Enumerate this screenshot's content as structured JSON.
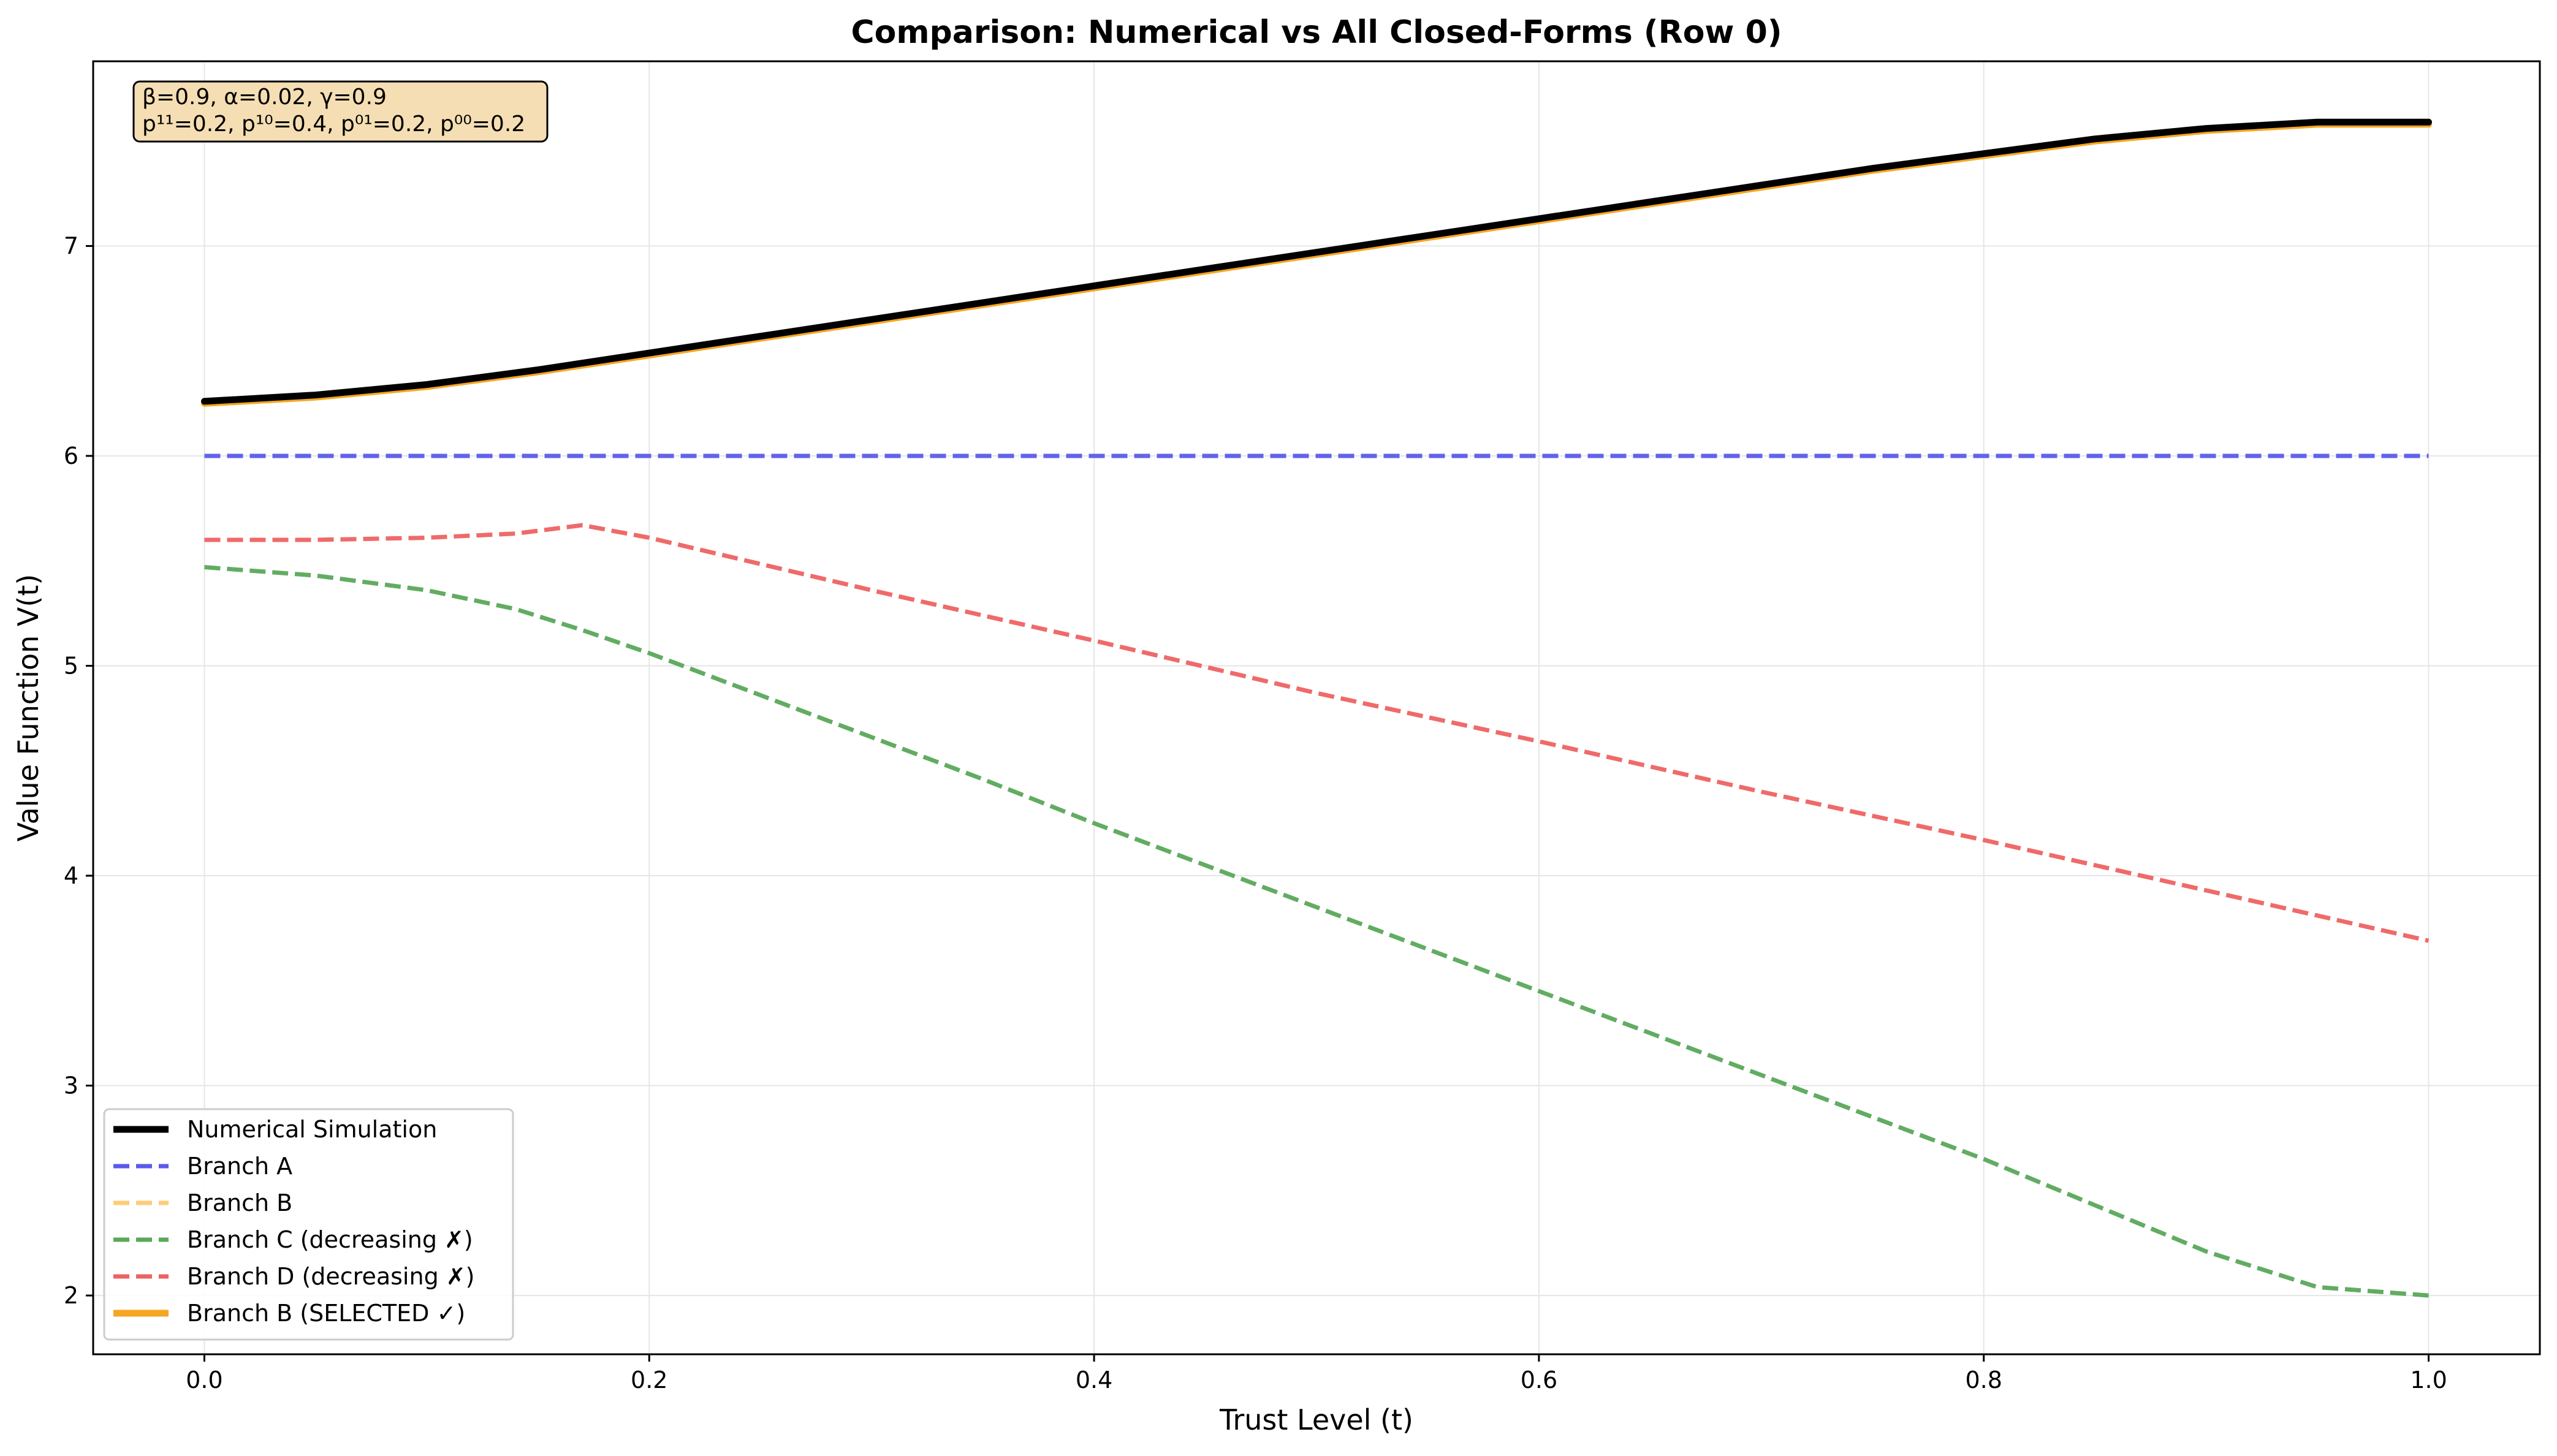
{
  "chart_data": {
    "type": "line",
    "title": "Comparison: Numerical vs All Closed-Forms (Row 0)",
    "xlabel": "Trust Level (t)",
    "ylabel": "Value Function V(t)",
    "xlim": [
      -0.05,
      1.05
    ],
    "ylim": [
      1.72,
      7.88
    ],
    "xticks": [
      0.0,
      0.2,
      0.4,
      0.6,
      0.8,
      1.0
    ],
    "xtick_labels": [
      "0.0",
      "0.2",
      "0.4",
      "0.6",
      "0.8",
      "1.0"
    ],
    "yticks": [
      2,
      3,
      4,
      5,
      6,
      7
    ],
    "ytick_labels": [
      "2",
      "3",
      "4",
      "5",
      "6",
      "7"
    ],
    "grid": true,
    "legend_position": "lower-left",
    "annotation_lines": [
      "β=0.9, α=0.02, γ=0.9",
      "p¹¹=0.2, p¹⁰=0.4, p⁰¹=0.2, p⁰⁰=0.2"
    ],
    "x": [
      0.0,
      0.05,
      0.1,
      0.15,
      0.2,
      0.25,
      0.3,
      0.35,
      0.4,
      0.45,
      0.5,
      0.55,
      0.6,
      0.65,
      0.7,
      0.75,
      0.8,
      0.85,
      0.9,
      0.95,
      1.0
    ],
    "series": [
      {
        "name": "Numerical Simulation",
        "color": "#000000",
        "style": "solid",
        "width": 11,
        "values": [
          6.26,
          6.29,
          6.34,
          6.41,
          6.49,
          6.57,
          6.65,
          6.73,
          6.81,
          6.89,
          6.97,
          7.05,
          7.13,
          7.21,
          7.29,
          7.37,
          7.44,
          7.51,
          7.56,
          7.59,
          7.59
        ]
      },
      {
        "name": "Branch A",
        "color": "#5b5bea",
        "style": "dashed",
        "width": 7,
        "values": [
          6.0,
          6.0,
          6.0,
          6.0,
          6.0,
          6.0,
          6.0,
          6.0,
          6.0,
          6.0,
          6.0,
          6.0,
          6.0,
          6.0,
          6.0,
          6.0,
          6.0,
          6.0,
          6.0,
          6.0,
          6.0
        ]
      },
      {
        "name": "Branch B",
        "color": "#ffcc77",
        "style": "dashed",
        "width": 7,
        "values": [
          6.25,
          6.28,
          6.33,
          6.4,
          6.48,
          6.56,
          6.64,
          6.72,
          6.8,
          6.88,
          6.96,
          7.04,
          7.12,
          7.2,
          7.28,
          7.36,
          7.43,
          7.5,
          7.55,
          7.58,
          7.58
        ]
      },
      {
        "name": "Branch C (decreasing ✗)",
        "color": "#5aa85a",
        "style": "dashed",
        "width": 7,
        "x": [
          0.0,
          0.05,
          0.1,
          0.14,
          0.17,
          0.2,
          0.25,
          0.3,
          0.35,
          0.4,
          0.45,
          0.5,
          0.55,
          0.6,
          0.65,
          0.7,
          0.75,
          0.8,
          0.85,
          0.9,
          0.95,
          1.0
        ],
        "values": [
          5.47,
          5.43,
          5.36,
          5.27,
          5.17,
          5.06,
          4.86,
          4.66,
          4.46,
          4.25,
          4.05,
          3.85,
          3.65,
          3.45,
          3.25,
          3.05,
          2.85,
          2.65,
          2.43,
          2.21,
          2.04,
          2.0
        ]
      },
      {
        "name": "Branch D (decreasing ✗)",
        "color": "#ee6262",
        "style": "dashed",
        "width": 7,
        "x": [
          0.0,
          0.05,
          0.1,
          0.14,
          0.17,
          0.2,
          0.3,
          0.4,
          0.5,
          0.6,
          0.7,
          0.8,
          0.9,
          1.0
        ],
        "values": [
          5.6,
          5.6,
          5.61,
          5.63,
          5.67,
          5.61,
          5.36,
          5.12,
          4.87,
          4.64,
          4.4,
          4.17,
          3.93,
          3.69
        ]
      },
      {
        "name": "Branch B (SELECTED ✓)",
        "color": "#f5a623",
        "style": "solid",
        "width": 11,
        "values": [
          6.25,
          6.28,
          6.33,
          6.4,
          6.48,
          6.56,
          6.64,
          6.72,
          6.8,
          6.88,
          6.96,
          7.04,
          7.12,
          7.2,
          7.28,
          7.36,
          7.43,
          7.5,
          7.55,
          7.58,
          7.58
        ]
      }
    ],
    "draw_order": [
      1,
      3,
      4,
      2,
      5,
      0
    ]
  }
}
